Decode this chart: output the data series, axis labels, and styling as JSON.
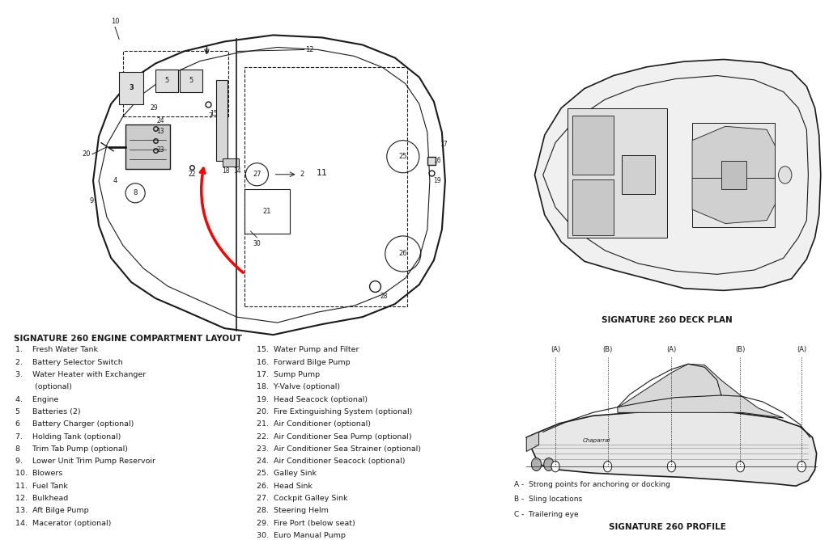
{
  "bg_color": "#ffffff",
  "title_engine": "SIGNATURE 260 ENGINE COMPARTMENT LAYOUT",
  "title_deck": "SIGNATURE 260 DECK PLAN",
  "title_profile": "SIGNATURE 260 PROFILE",
  "legend_items": [
    "A -  Strong points for anchoring or docking",
    "B -  Sling locations",
    "C -  Trailering eye"
  ],
  "left_list": [
    "1.    Fresh Water Tank",
    "2.    Battery Selector Switch",
    "3.    Water Heater with Exchanger",
    "        (optional)",
    "4.    Engine",
    "5     Batteries (2)",
    "6     Battery Charger (optional)",
    "7.    Holding Tank (optional)",
    "8     Trim Tab Pump (optional)",
    "9.    Lower Unit Trim Pump Reservoir",
    "10.  Blowers",
    "11.  Fuel Tank",
    "12.  Bulkhead",
    "13.  Aft Bilge Pump",
    "14.  Macerator (optional)"
  ],
  "right_list": [
    "15.  Water Pump and Filter",
    "16.  Forward Bilge Pump",
    "17.  Sump Pump",
    "18.  Y-Valve (optional)",
    "19.  Head Seacock (optional)",
    "20.  Fire Extinguishing System (optional)",
    "21.  Air Conditioner (optional)",
    "22.  Air Conditioner Sea Pump (optional)",
    "23.  Air Conditioner Sea Strainer (optional)",
    "24.  Air Conditioner Seacock (optional)",
    "25.  Galley Sink",
    "26.  Head Sink",
    "27.  Cockpit Galley Sink",
    "28.  Steering Helm",
    "29.  Fire Port (below seat)",
    "30.  Euro Manual Pump"
  ],
  "col": "#1a1a1a"
}
